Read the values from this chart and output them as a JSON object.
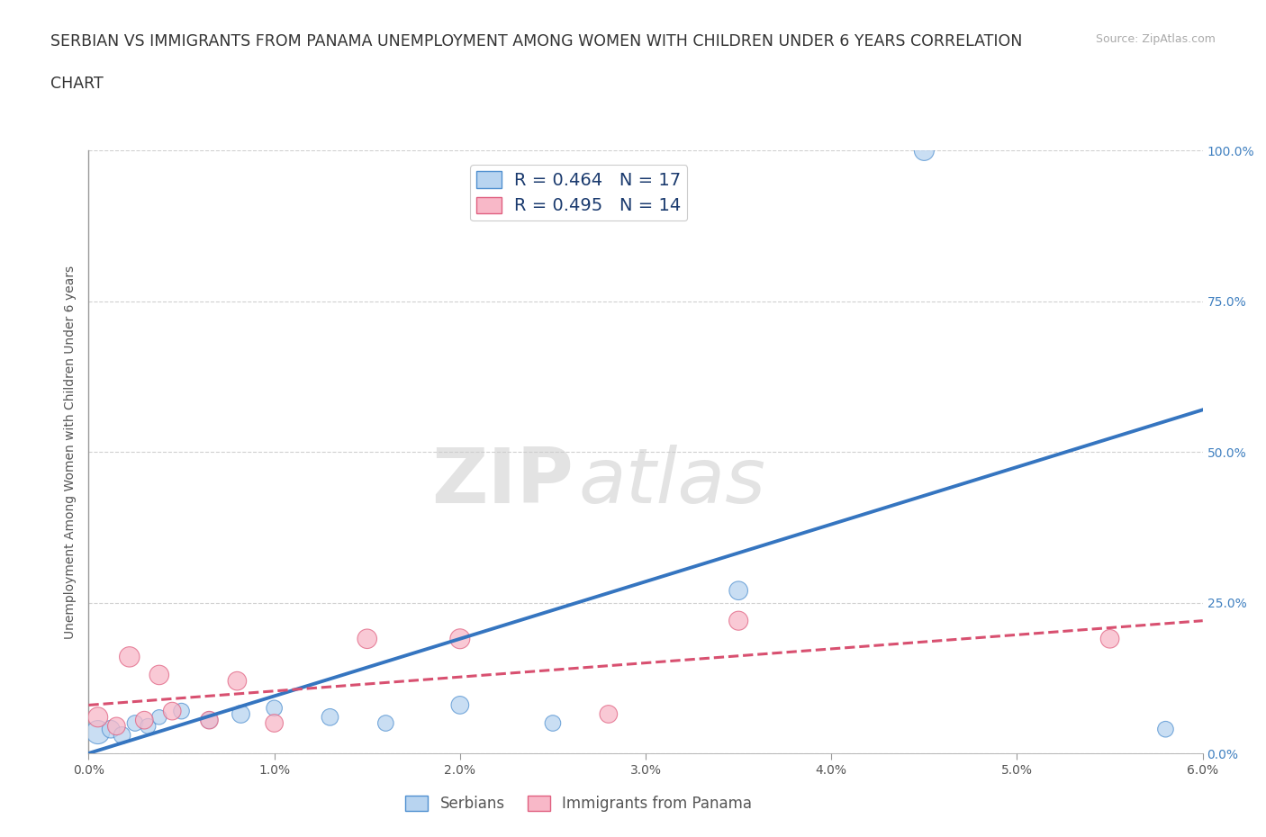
{
  "title_line1": "SERBIAN VS IMMIGRANTS FROM PANAMA UNEMPLOYMENT AMONG WOMEN WITH CHILDREN UNDER 6 YEARS CORRELATION",
  "title_line2": "CHART",
  "source_text": "Source: ZipAtlas.com",
  "ylabel": "Unemployment Among Women with Children Under 6 years",
  "xlim": [
    0.0,
    6.0
  ],
  "ylim": [
    0.0,
    100.0
  ],
  "xticks": [
    0.0,
    1.0,
    2.0,
    3.0,
    4.0,
    5.0,
    6.0
  ],
  "xticklabels": [
    "0.0%",
    "1.0%",
    "2.0%",
    "3.0%",
    "4.0%",
    "5.0%",
    "6.0%"
  ],
  "yticks": [
    0.0,
    25.0,
    50.0,
    75.0,
    100.0
  ],
  "yticklabels": [
    "0.0%",
    "25.0%",
    "50.0%",
    "75.0%",
    "100.0%"
  ],
  "watermark_zip": "ZIP",
  "watermark_atlas": "atlas",
  "background_color": "#ffffff",
  "grid_color": "#d0d0d0",
  "serbian": {
    "color": "#b8d4f0",
    "edge_color": "#5090d0",
    "line_color": "#3575c0",
    "R": 0.464,
    "N": 17,
    "x": [
      0.05,
      0.12,
      0.18,
      0.25,
      0.32,
      0.38,
      0.5,
      0.65,
      0.82,
      1.0,
      1.3,
      1.6,
      2.0,
      2.5,
      3.5,
      4.5,
      5.8
    ],
    "y": [
      3.5,
      4.0,
      3.0,
      5.0,
      4.5,
      6.0,
      7.0,
      5.5,
      6.5,
      7.5,
      6.0,
      5.0,
      8.0,
      5.0,
      27.0,
      100.0,
      4.0
    ],
    "sizes": [
      350,
      200,
      180,
      160,
      150,
      140,
      160,
      180,
      200,
      160,
      180,
      160,
      200,
      160,
      220,
      250,
      160
    ],
    "label": "Serbians",
    "line_x": [
      0.0,
      6.0
    ],
    "line_y": [
      0.0,
      57.0
    ]
  },
  "panama": {
    "color": "#f8b8c8",
    "edge_color": "#e06080",
    "line_color": "#d85070",
    "R": 0.495,
    "N": 14,
    "x": [
      0.05,
      0.15,
      0.22,
      0.3,
      0.38,
      0.45,
      0.65,
      0.8,
      1.0,
      1.5,
      2.0,
      2.8,
      3.5,
      5.5
    ],
    "y": [
      6.0,
      4.5,
      16.0,
      5.5,
      13.0,
      7.0,
      5.5,
      12.0,
      5.0,
      19.0,
      19.0,
      6.5,
      22.0,
      19.0
    ],
    "sizes": [
      250,
      200,
      260,
      200,
      240,
      200,
      200,
      220,
      200,
      240,
      250,
      200,
      230,
      220
    ],
    "label": "Immigrants from Panama",
    "line_x": [
      0.0,
      6.0
    ],
    "line_y": [
      8.0,
      22.0
    ]
  },
  "legend_Serbian_color": "#b8d4f0",
  "legend_Serbian_edge": "#5090d0",
  "legend_Panama_color": "#f8b8c8",
  "legend_Panama_edge": "#e06080",
  "legend_text_color": "#1a3a6e",
  "right_axis_color": "#4080c0",
  "title_color": "#333333",
  "title_fontsize": 12.5,
  "axis_label_fontsize": 10,
  "tick_fontsize": 10
}
